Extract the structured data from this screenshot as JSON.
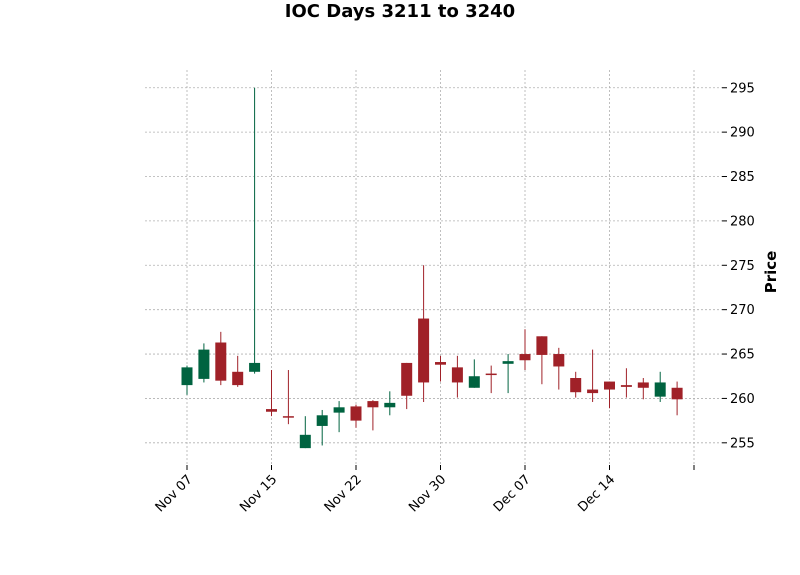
{
  "chart_data": {
    "type": "candlestick",
    "title": "IOC Days 3211 to 3240",
    "ylabel": "Price",
    "ylim": [
      252.5,
      297
    ],
    "yticks": [
      255,
      260,
      265,
      270,
      275,
      280,
      285,
      290,
      295
    ],
    "xticks": [
      {
        "label": "Nov 07",
        "index": 0
      },
      {
        "label": "Nov 15",
        "index": 5
      },
      {
        "label": "Nov 22",
        "index": 10
      },
      {
        "label": "Nov 30",
        "index": 15
      },
      {
        "label": "Dec 07",
        "index": 20
      },
      {
        "label": "Dec 14",
        "index": 25
      },
      {
        "label": "",
        "index": 30
      }
    ],
    "grid": true,
    "colors": {
      "up": "#006340",
      "down": "#a02128"
    },
    "candles": [
      {
        "o": 261.5,
        "h": 263.7,
        "l": 260.4,
        "c": 263.5
      },
      {
        "o": 262.2,
        "h": 266.2,
        "l": 261.8,
        "c": 265.5
      },
      {
        "o": 266.3,
        "h": 267.5,
        "l": 261.5,
        "c": 262.0
      },
      {
        "o": 263.0,
        "h": 264.8,
        "l": 261.3,
        "c": 261.5
      },
      {
        "o": 263.0,
        "h": 295.0,
        "l": 262.8,
        "c": 264.0
      },
      {
        "o": 258.8,
        "h": 263.2,
        "l": 258.0,
        "c": 258.5
      },
      {
        "o": 258.0,
        "h": 263.2,
        "l": 257.1,
        "c": 257.9
      },
      {
        "o": 254.4,
        "h": 258.0,
        "l": 254.4,
        "c": 255.9
      },
      {
        "o": 256.9,
        "h": 258.7,
        "l": 254.7,
        "c": 258.1
      },
      {
        "o": 258.4,
        "h": 259.7,
        "l": 256.2,
        "c": 259.0
      },
      {
        "o": 259.1,
        "h": 259.3,
        "l": 256.7,
        "c": 257.5
      },
      {
        "o": 259.7,
        "h": 259.8,
        "l": 256.4,
        "c": 259.0
      },
      {
        "o": 259.0,
        "h": 260.8,
        "l": 258.1,
        "c": 259.5
      },
      {
        "o": 264.0,
        "h": 264.0,
        "l": 258.8,
        "c": 260.3
      },
      {
        "o": 269.0,
        "h": 275.0,
        "l": 259.6,
        "c": 261.8
      },
      {
        "o": 264.1,
        "h": 264.8,
        "l": 261.9,
        "c": 263.8
      },
      {
        "o": 263.5,
        "h": 264.8,
        "l": 260.1,
        "c": 261.8
      },
      {
        "o": 261.2,
        "h": 264.4,
        "l": 261.2,
        "c": 262.5
      },
      {
        "o": 262.8,
        "h": 263.7,
        "l": 260.6,
        "c": 262.7
      },
      {
        "o": 263.9,
        "h": 265.0,
        "l": 260.6,
        "c": 264.2
      },
      {
        "o": 265.0,
        "h": 267.8,
        "l": 263.2,
        "c": 264.3
      },
      {
        "o": 267.0,
        "h": 267.0,
        "l": 261.6,
        "c": 264.9
      },
      {
        "o": 265.0,
        "h": 265.7,
        "l": 261.0,
        "c": 263.6
      },
      {
        "o": 262.3,
        "h": 263.0,
        "l": 260.1,
        "c": 260.7
      },
      {
        "o": 261.0,
        "h": 265.5,
        "l": 259.6,
        "c": 260.6
      },
      {
        "o": 261.9,
        "h": 261.9,
        "l": 258.9,
        "c": 261.0
      },
      {
        "o": 261.5,
        "h": 263.4,
        "l": 260.1,
        "c": 261.3
      },
      {
        "o": 261.8,
        "h": 262.3,
        "l": 259.9,
        "c": 261.2
      },
      {
        "o": 260.2,
        "h": 263.0,
        "l": 259.6,
        "c": 261.8
      },
      {
        "o": 261.2,
        "h": 261.9,
        "l": 258.1,
        "c": 259.9
      }
    ]
  }
}
